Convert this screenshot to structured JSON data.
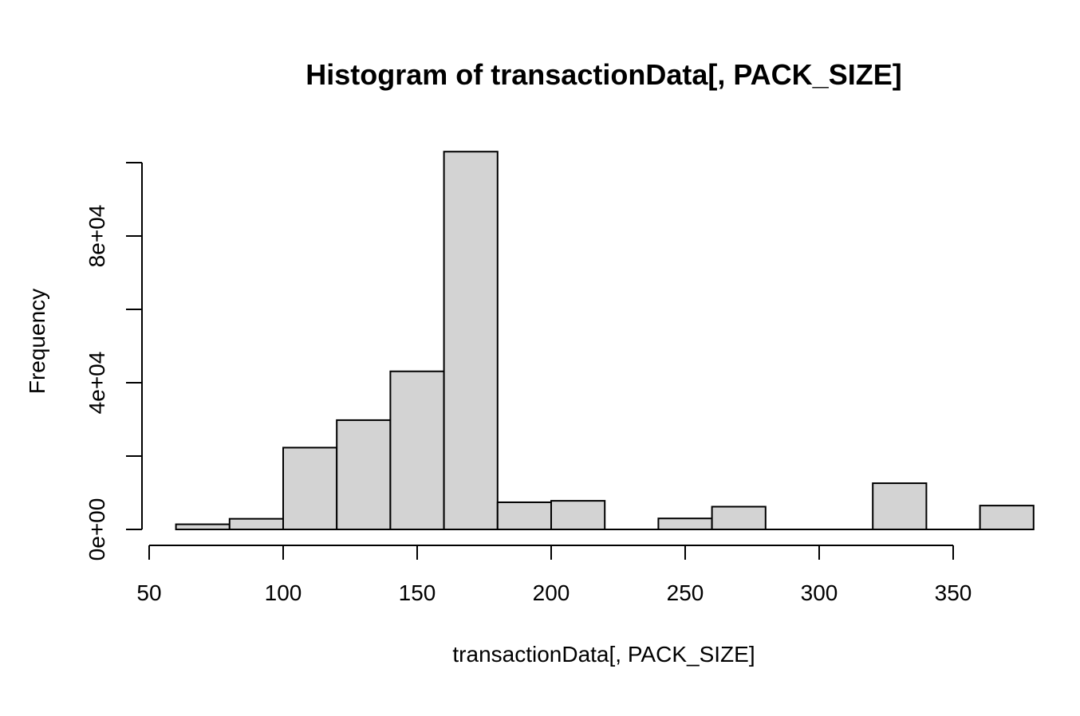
{
  "chart_data": {
    "type": "bar",
    "title": "Histogram of transactionData[, PACK_SIZE]",
    "xlabel": "transactionData[, PACK_SIZE]",
    "ylabel": "Frequency",
    "bin_edges": [
      60,
      80,
      100,
      120,
      140,
      160,
      180,
      200,
      220,
      240,
      260,
      280,
      300,
      320,
      340,
      360,
      380
    ],
    "values": [
      1400,
      2900,
      22300,
      29800,
      43100,
      103000,
      7400,
      7800,
      0,
      3000,
      6200,
      0,
      0,
      12600,
      0,
      6500
    ],
    "xlim": [
      50,
      380
    ],
    "ylim": [
      0,
      100000
    ],
    "x_ticks": [
      50,
      100,
      150,
      200,
      250,
      300,
      350
    ],
    "x_tick_labels": [
      "50",
      "100",
      "150",
      "200",
      "250",
      "300",
      "350"
    ],
    "y_ticks": [
      0,
      20000,
      40000,
      60000,
      80000,
      100000
    ],
    "y_tick_labels": [
      "0e+00",
      "",
      "4e+04",
      "",
      "8e+04",
      ""
    ],
    "bar_color": "#d3d3d3",
    "grid": false,
    "legend": "none"
  }
}
